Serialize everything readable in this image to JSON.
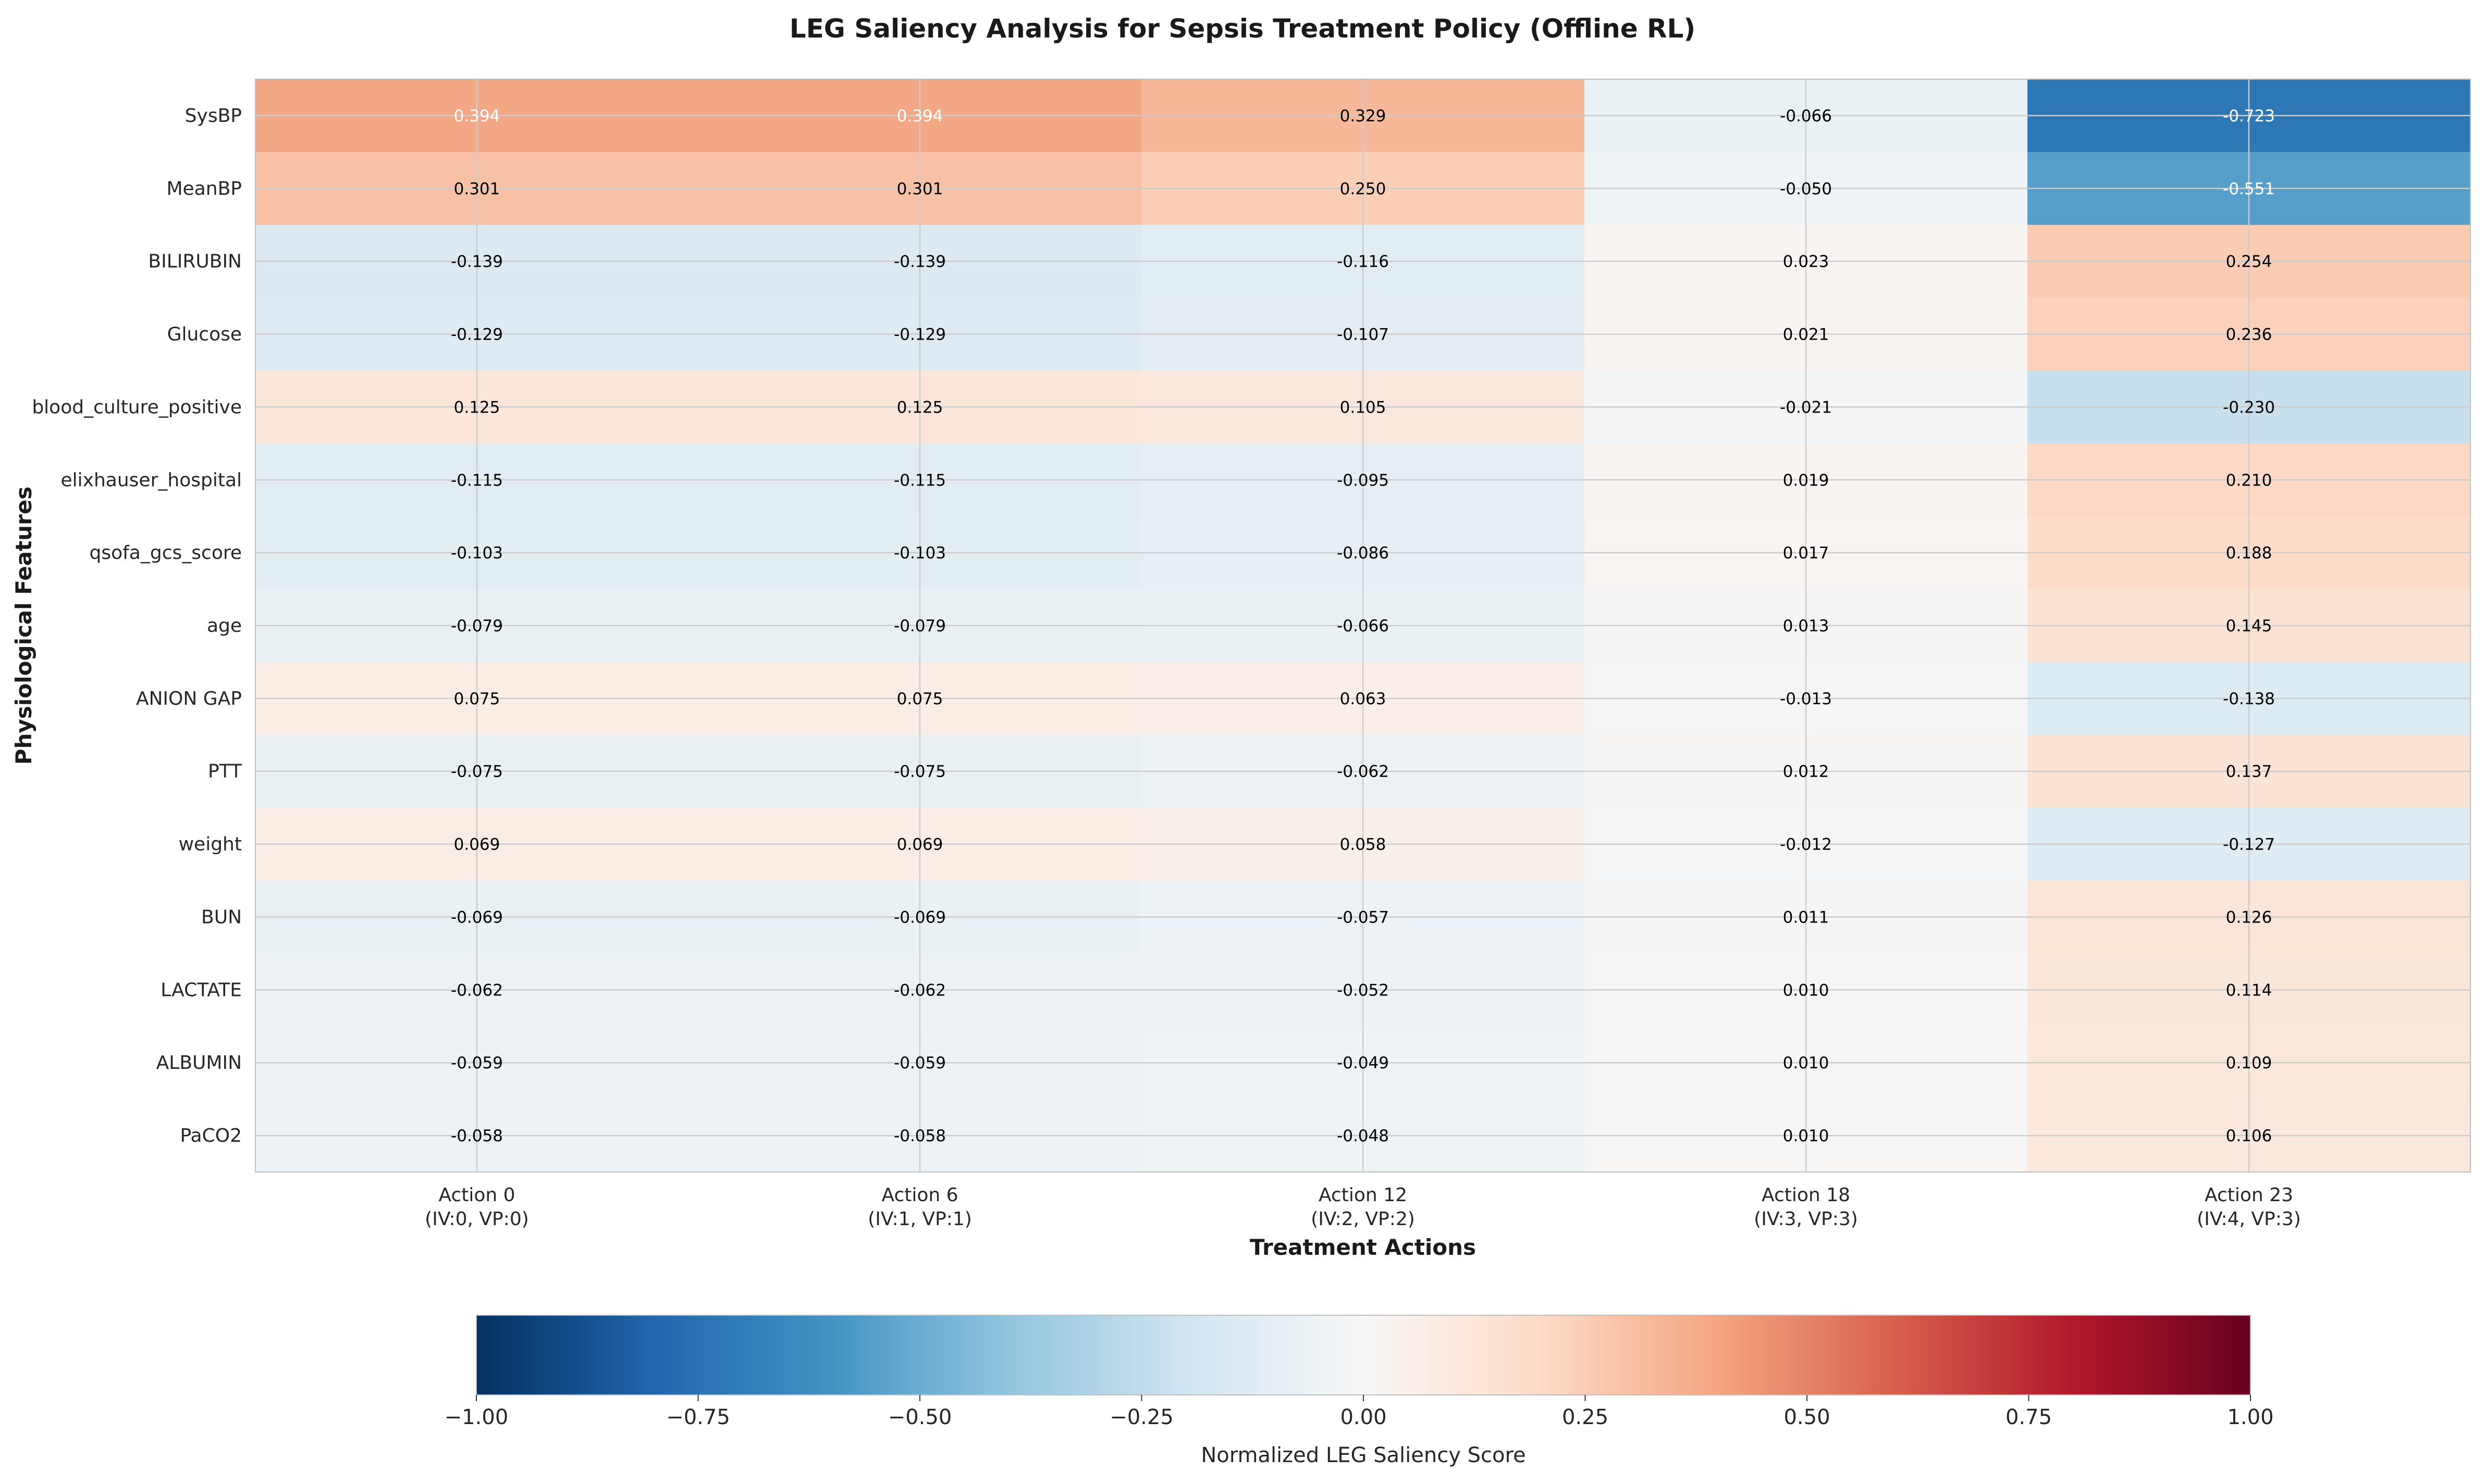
{
  "chart_data": {
    "type": "heatmap",
    "title": "LEG Saliency Analysis for Sepsis Treatment Policy (Offline RL)",
    "xlabel": "Treatment Actions",
    "ylabel": "Physiological Features",
    "x_categories": [
      {
        "line1": "Action 0",
        "line2": "(IV:0, VP:0)"
      },
      {
        "line1": "Action 6",
        "line2": "(IV:1, VP:1)"
      },
      {
        "line1": "Action 12",
        "line2": "(IV:2, VP:2)"
      },
      {
        "line1": "Action 18",
        "line2": "(IV:3, VP:3)"
      },
      {
        "line1": "Action 23",
        "line2": "(IV:4, VP:3)"
      }
    ],
    "y_categories": [
      "SysBP",
      "MeanBP",
      "BILIRUBIN",
      "Glucose",
      "blood_culture_positive",
      "elixhauser_hospital",
      "qsofa_gcs_score",
      "age",
      "ANION GAP",
      "PTT",
      "weight",
      "BUN",
      "LACTATE",
      "ALBUMIN",
      "PaCO2"
    ],
    "values": [
      [
        0.394,
        0.394,
        0.329,
        -0.066,
        -0.723
      ],
      [
        0.301,
        0.301,
        0.25,
        -0.05,
        -0.551
      ],
      [
        -0.139,
        -0.139,
        -0.116,
        0.023,
        0.254
      ],
      [
        -0.129,
        -0.129,
        -0.107,
        0.021,
        0.236
      ],
      [
        0.125,
        0.125,
        0.105,
        -0.021,
        -0.23
      ],
      [
        -0.115,
        -0.115,
        -0.095,
        0.019,
        0.21
      ],
      [
        -0.103,
        -0.103,
        -0.086,
        0.017,
        0.188
      ],
      [
        -0.079,
        -0.079,
        -0.066,
        0.013,
        0.145
      ],
      [
        0.075,
        0.075,
        0.063,
        -0.013,
        -0.138
      ],
      [
        -0.075,
        -0.075,
        -0.062,
        0.012,
        0.137
      ],
      [
        0.069,
        0.069,
        0.058,
        -0.012,
        -0.127
      ],
      [
        -0.069,
        -0.069,
        -0.057,
        0.011,
        0.126
      ],
      [
        -0.062,
        -0.062,
        -0.052,
        0.01,
        0.114
      ],
      [
        -0.059,
        -0.059,
        -0.049,
        0.01,
        0.109
      ],
      [
        -0.058,
        -0.058,
        -0.048,
        0.01,
        0.106
      ]
    ],
    "colormap": "RdBu_r",
    "vmin": -1.0,
    "vmax": 1.0,
    "colorbar": {
      "label": "Normalized LEG Saliency Score",
      "orientation": "horizontal",
      "ticks": [
        -1.0,
        -0.75,
        -0.5,
        -0.25,
        0.0,
        0.25,
        0.5,
        0.75,
        1.0
      ],
      "tick_labels": [
        "−1.00",
        "−0.75",
        "−0.50",
        "−0.25",
        "0.00",
        "0.25",
        "0.50",
        "0.75",
        "1.00"
      ]
    },
    "grid": true
  }
}
